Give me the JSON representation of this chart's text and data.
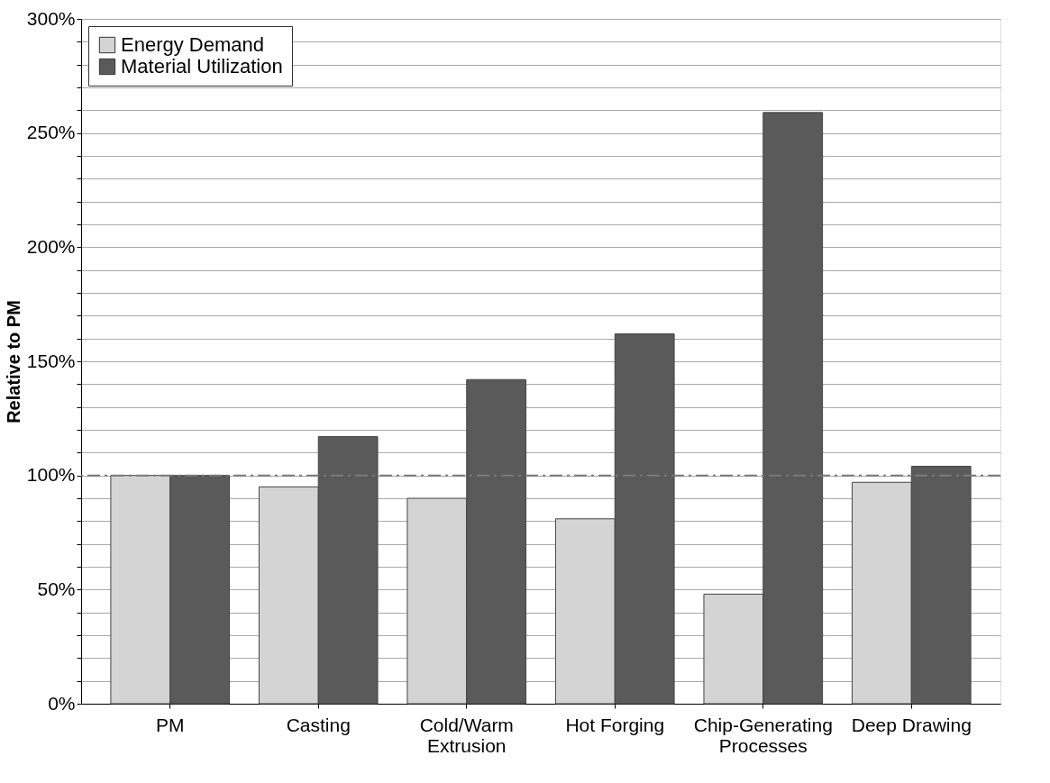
{
  "chart_data": {
    "type": "bar",
    "ylabel": "Relative to PM",
    "categories": [
      "PM",
      "Casting",
      "Cold/Warm\nExtrusion",
      "Hot Forging",
      "Chip-Generating\nProcesses",
      "Deep Drawing"
    ],
    "series": [
      {
        "name": "Energy Demand",
        "color": "#d4d4d4",
        "values": [
          100,
          95,
          90,
          81,
          48,
          97
        ]
      },
      {
        "name": "Material Utilization",
        "color": "#5a5a5a",
        "values": [
          100,
          117,
          142,
          162,
          259,
          104
        ]
      }
    ],
    "ylim": [
      0,
      300
    ],
    "yticks": [
      {
        "value": 0,
        "label": "0%"
      },
      {
        "value": 10,
        "label": null
      },
      {
        "value": 20,
        "label": null
      },
      {
        "value": 30,
        "label": null
      },
      {
        "value": 40,
        "label": null
      },
      {
        "value": 50,
        "label": "50%"
      },
      {
        "value": 60,
        "label": null
      },
      {
        "value": 70,
        "label": null
      },
      {
        "value": 80,
        "label": null
      },
      {
        "value": 90,
        "label": null
      },
      {
        "value": 100,
        "label": "100%"
      },
      {
        "value": 110,
        "label": null
      },
      {
        "value": 120,
        "label": null
      },
      {
        "value": 130,
        "label": null
      },
      {
        "value": 140,
        "label": null
      },
      {
        "value": 150,
        "label": "150%"
      },
      {
        "value": 160,
        "label": null
      },
      {
        "value": 170,
        "label": null
      },
      {
        "value": 180,
        "label": null
      },
      {
        "value": 190,
        "label": null
      },
      {
        "value": 200,
        "label": "200%"
      },
      {
        "value": 210,
        "label": null
      },
      {
        "value": 220,
        "label": null
      },
      {
        "value": 230,
        "label": null
      },
      {
        "value": 240,
        "label": null
      },
      {
        "value": 250,
        "label": "250%"
      },
      {
        "value": 260,
        "label": null
      },
      {
        "value": 270,
        "label": null
      },
      {
        "value": 280,
        "label": null
      },
      {
        "value": 290,
        "label": null
      },
      {
        "value": 300,
        "label": "300%"
      }
    ],
    "ref_lines": [
      {
        "axis": "y",
        "value": 100,
        "color": "#7a7a7a",
        "line_style": "dashdot"
      }
    ],
    "grid": "y",
    "legend": "top left"
  }
}
